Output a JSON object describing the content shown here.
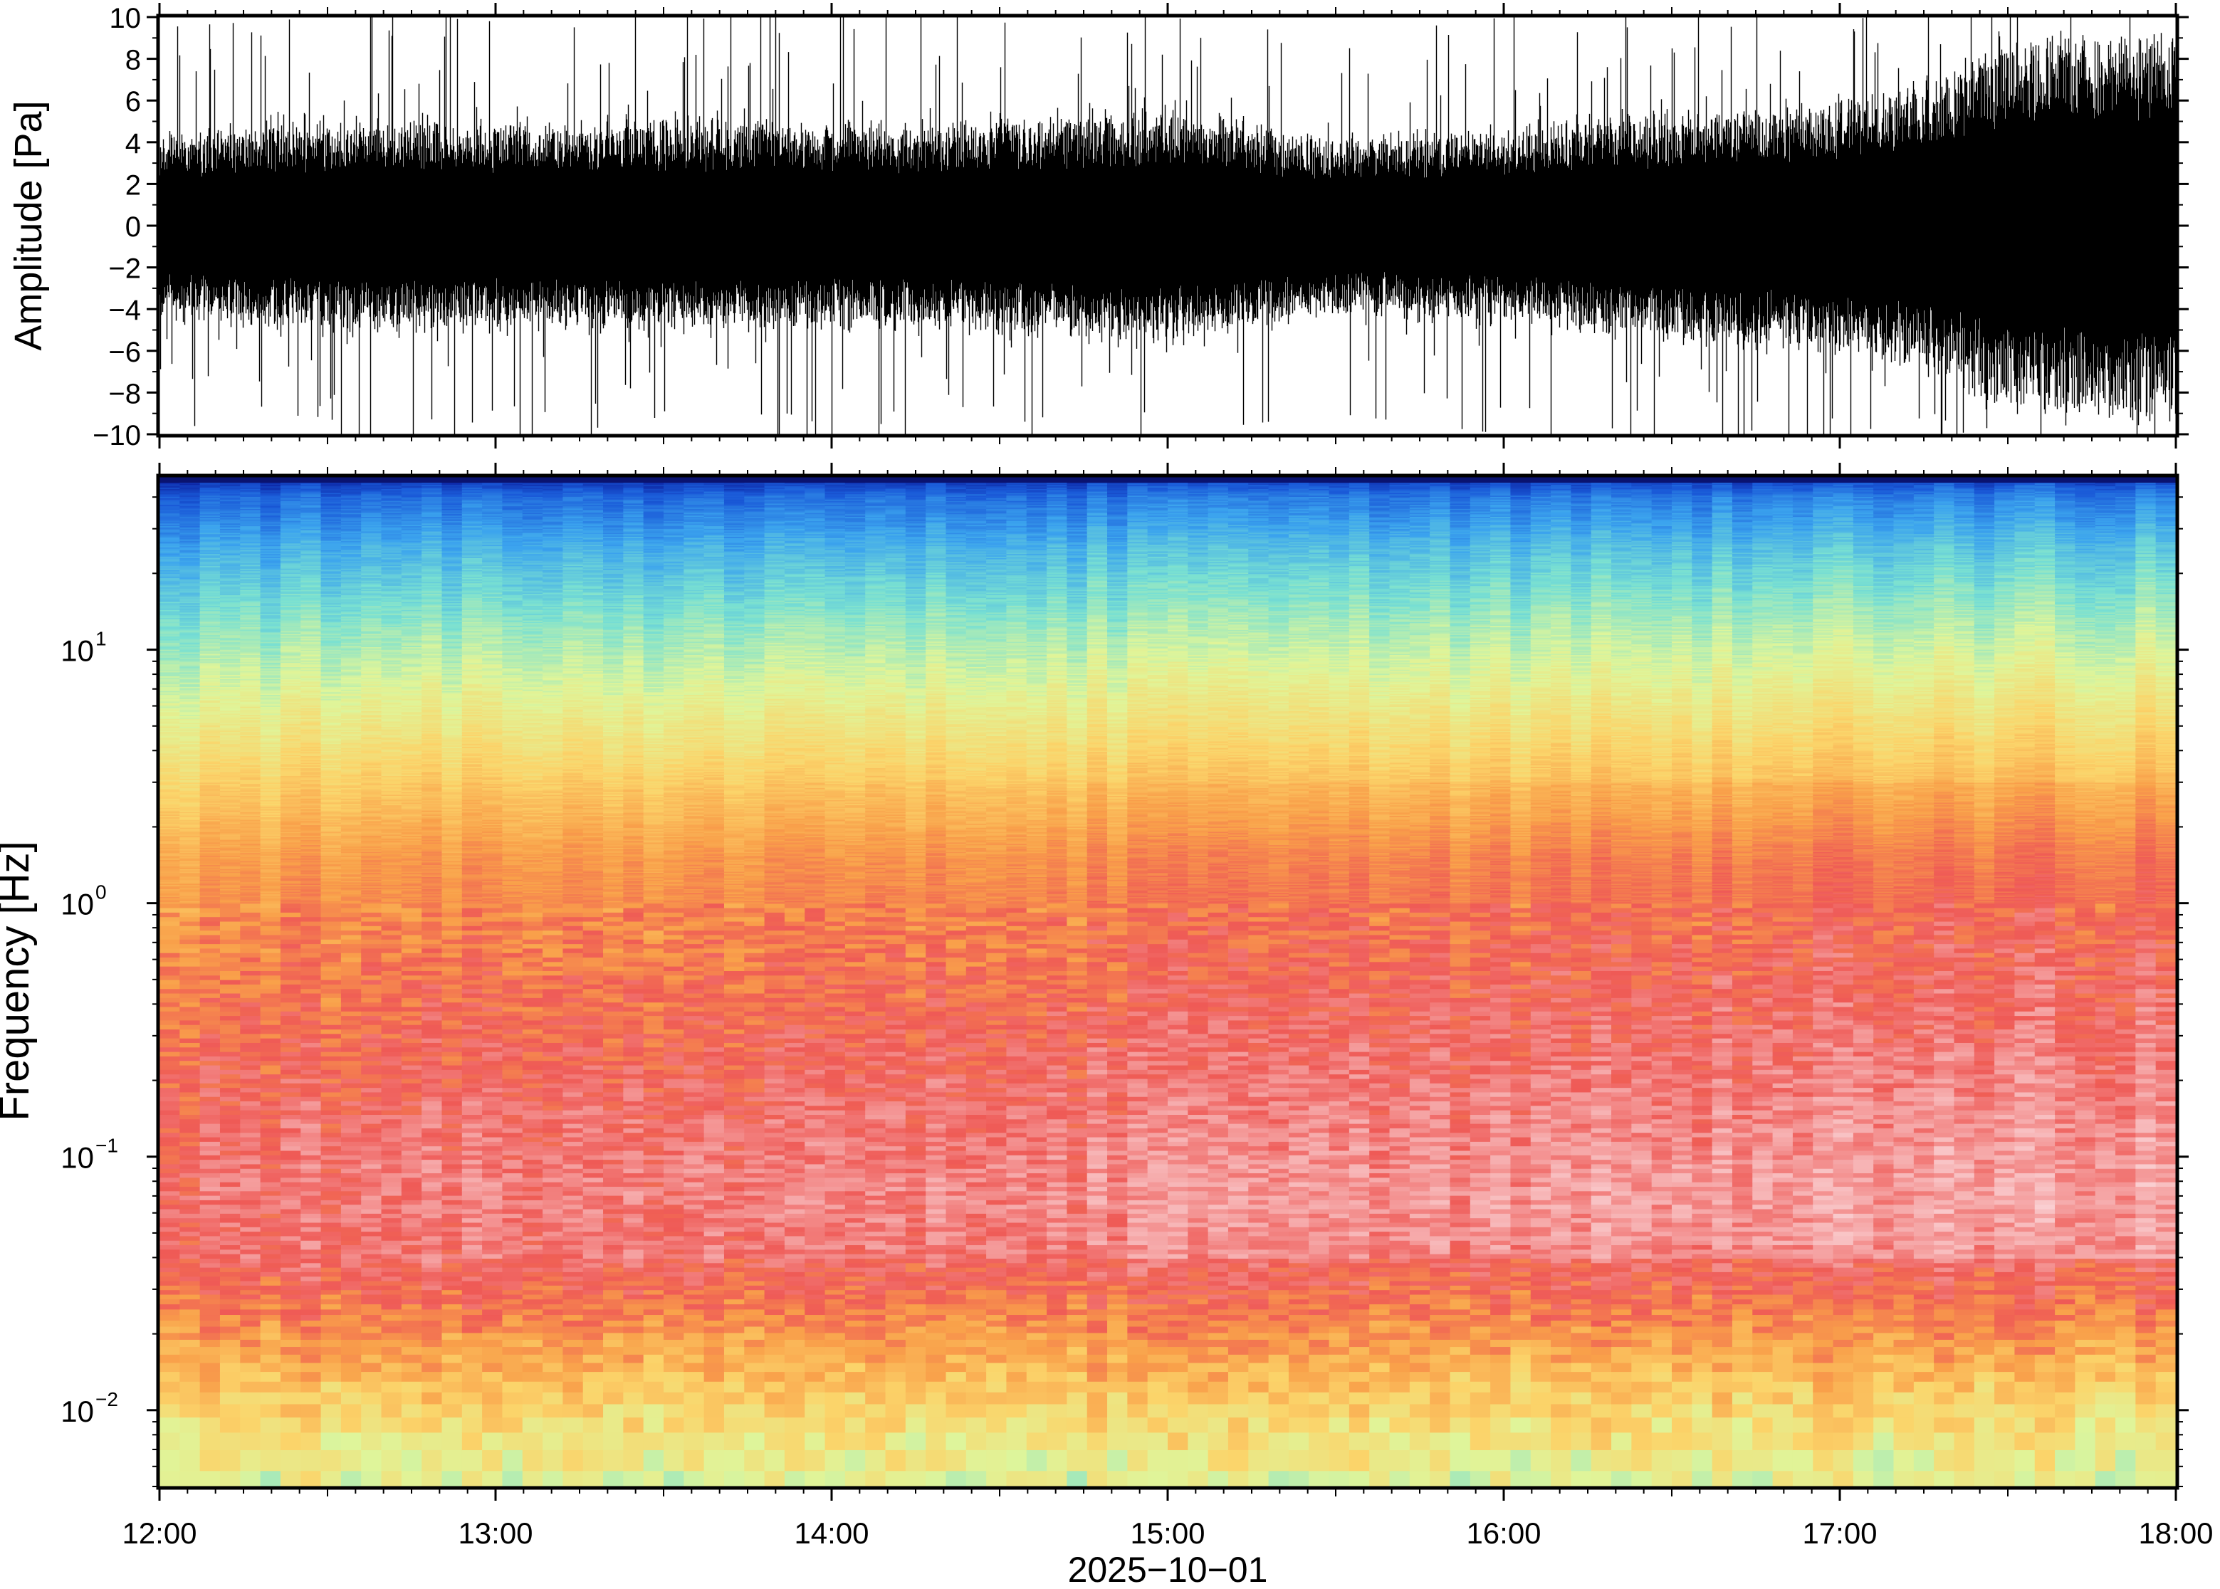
{
  "chart_data": [
    {
      "type": "line",
      "panel": "waveform",
      "ylabel": "Amplitude [Pa]",
      "ylim": [
        -10,
        10
      ],
      "yticks": [
        10,
        8,
        6,
        4,
        2,
        0,
        -2,
        -4,
        -6,
        -8,
        -10
      ],
      "ytick_labels": [
        "10",
        "8",
        "6",
        "4",
        "2",
        "0",
        "−2",
        "−4",
        "−6",
        "−8",
        "−10"
      ],
      "x_range": [
        "12:00",
        "18:00"
      ],
      "envelope": {
        "hours": [
          12.0,
          12.5,
          13.0,
          13.5,
          14.0,
          14.5,
          15.0,
          15.5,
          16.0,
          16.5,
          17.0,
          17.25,
          17.5,
          17.75,
          18.0
        ],
        "typical_peak_pa": [
          4.0,
          4.6,
          4.5,
          4.6,
          4.5,
          4.6,
          5.2,
          3.8,
          4.2,
          5.0,
          5.6,
          6.5,
          8.5,
          8.8,
          9.0
        ],
        "max_spike_pa": [
          9.5,
          10.0,
          10.0,
          10.0,
          10.0,
          10.0,
          10.0,
          9.0,
          10.0,
          10.0,
          10.0,
          10.0,
          10.0,
          10.0,
          10.0
        ]
      }
    },
    {
      "type": "heatmap",
      "panel": "spectrogram",
      "ylabel": "Frequency [Hz]",
      "yscale": "log",
      "ylim_hz": [
        0.005,
        48
      ],
      "yticks_hz": [
        10,
        1,
        0.1,
        0.01
      ],
      "ytick_labels": [
        {
          "base": "10",
          "exp": "1"
        },
        {
          "base": "10",
          "exp": "0"
        },
        {
          "base": "10",
          "exp": "−1"
        },
        {
          "base": "10",
          "exp": "−2"
        }
      ],
      "xlabel": "2025−10−01",
      "xticks": [
        "12:00",
        "13:00",
        "14:00",
        "15:00",
        "16:00",
        "17:00",
        "18:00"
      ],
      "colormap": [
        "#0b1f9e",
        "#1a5ad8",
        "#3ba3ee",
        "#79e0d2",
        "#dff59a",
        "#fbd46a",
        "#f9a04a",
        "#ef5a56",
        "#f5a3a3",
        "#fbd9dc"
      ],
      "column_count": 100
    }
  ]
}
